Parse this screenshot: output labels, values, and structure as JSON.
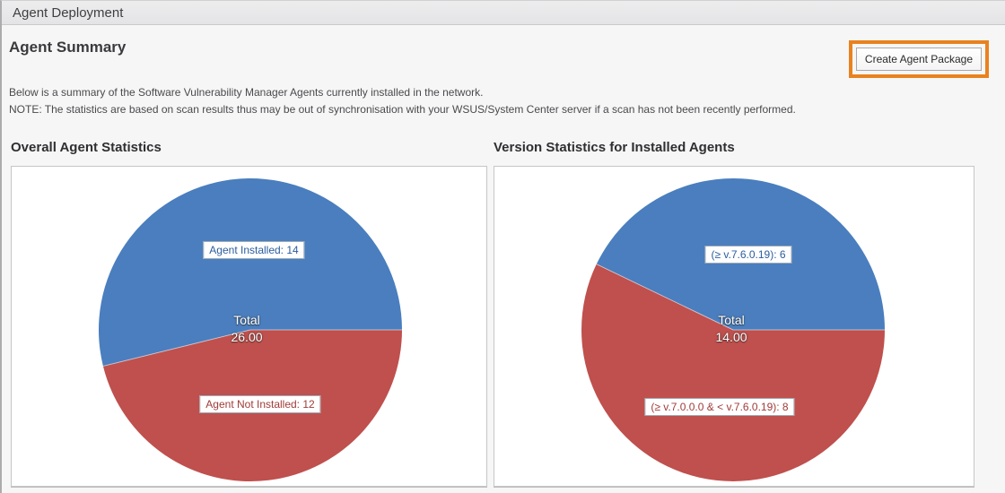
{
  "window": {
    "title": "Agent Deployment"
  },
  "page": {
    "heading": "Agent Summary",
    "description": "Below is a summary of the Software Vulnerability Manager Agents currently installed in the network.",
    "note": "NOTE: The statistics are based on scan results thus may be out of synchronisation with your WSUS/System Center server if a scan has not been recently performed.",
    "create_button_label": "Create Agent Package",
    "highlight_color": "#E8821E"
  },
  "chart_data": [
    {
      "type": "pie",
      "title": "Overall Agent Statistics",
      "total": 26,
      "center_label": {
        "line1": "Total",
        "line2": "26.00"
      },
      "legend": "none",
      "slices": [
        {
          "name": "agent-installed",
          "label": "Agent Installed: 14",
          "value": 14,
          "color": "#4A7EBE",
          "label_text_color": "#2B5D9E"
        },
        {
          "name": "agent-not-installed",
          "label": "Agent Not Installed: 12",
          "value": 12,
          "color": "#BF504D",
          "label_text_color": "#A03C39"
        }
      ]
    },
    {
      "type": "pie",
      "title": "Version Statistics for Installed Agents",
      "total": 14,
      "center_label": {
        "line1": "Total",
        "line2": "14.00"
      },
      "legend": "none",
      "slices": [
        {
          "name": "version-gte-7-6-0-19",
          "label": "(≥ v.7.6.0.19): 6",
          "value": 6,
          "color": "#4A7EBE",
          "label_text_color": "#2B5D9E"
        },
        {
          "name": "version-gte-7-0-0-0-lt-7-6-0-19",
          "label": "(≥ v.7.0.0.0 & < v.7.6.0.19): 8",
          "value": 8,
          "color": "#BF504D",
          "label_text_color": "#A03C39"
        }
      ]
    }
  ]
}
